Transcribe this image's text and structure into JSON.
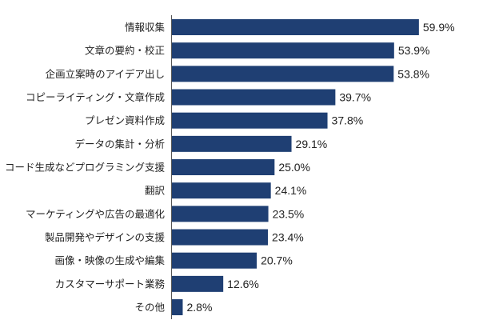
{
  "chart_data": {
    "type": "bar",
    "orientation": "horizontal",
    "title": "",
    "xlabel": "",
    "ylabel": "",
    "xlim": [
      0,
      65
    ],
    "grid": false,
    "legend": "none",
    "bar_color": "#1f3f73",
    "axis_color": "#555555",
    "categories": [
      "情報収集",
      "文章の要約・校正",
      "企画立案時のアイデア出し",
      "コピーライティング・文章作成",
      "プレゼン資料作成",
      "データの集計・分析",
      "コード生成などプログラミング支援",
      "翻訳",
      "マーケティングや広告の最適化",
      "製品開発やデザインの支援",
      "画像・映像の生成や編集",
      "カスタマーサポート業務",
      "その他"
    ],
    "values": [
      59.9,
      53.9,
      53.8,
      39.7,
      37.8,
      29.1,
      25.0,
      24.1,
      23.5,
      23.4,
      20.7,
      12.6,
      2.8
    ],
    "value_labels": [
      "59.9%",
      "53.9%",
      "53.8%",
      "39.7%",
      "37.8%",
      "29.1%",
      "25.0%",
      "24.1%",
      "23.5%",
      "23.4%",
      "20.7%",
      "12.6%",
      "2.8%"
    ]
  }
}
